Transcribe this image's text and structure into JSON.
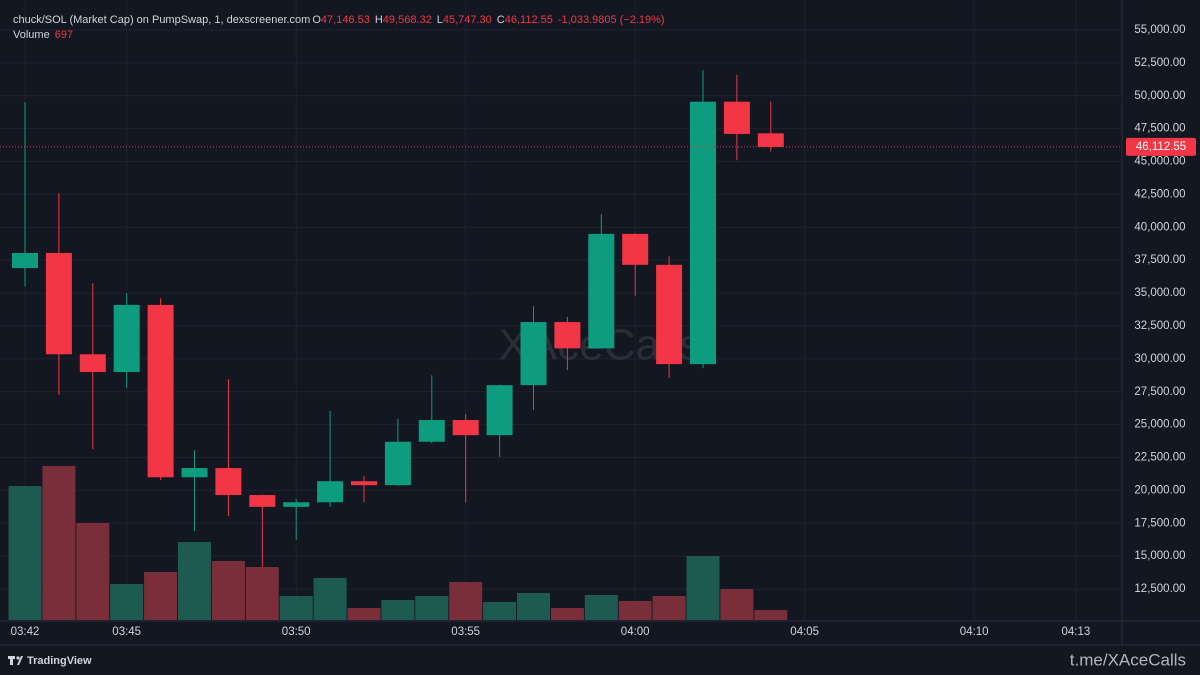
{
  "chart_data": {
    "type": "candlestick",
    "title": "chuck/SOL (Market Cap) on PumpSwap, 1, dexscreener.com",
    "legend": [
      {
        "key": "O",
        "value": "47,146.53"
      },
      {
        "key": "H",
        "value": "49,568.32"
      },
      {
        "key": "L",
        "value": "45,747.30"
      },
      {
        "key": "C",
        "value": "46,112.55"
      }
    ],
    "change": "-1,033.9805 (−2.19%)",
    "volume_title": "Volume",
    "watermark": "XAceCalls",
    "brand": "TradingView",
    "footer": "t.me/XAceCalls",
    "categories": [
      "03:42",
      null,
      null,
      "03:45",
      null,
      null,
      null,
      null,
      "03:50",
      null,
      null,
      null,
      null,
      "03:55",
      null,
      null,
      null,
      null,
      "04:00",
      null,
      null,
      null,
      null,
      "04:05",
      null,
      null,
      null,
      null,
      "04:10",
      null,
      null,
      "04:13"
    ],
    "open": [
      36900,
      38050,
      30350,
      29000,
      34100,
      21000,
      21700,
      19650,
      18750,
      19100,
      20700,
      20400,
      23700,
      25350,
      24200,
      28000,
      32800,
      30800,
      39500,
      37150,
      29600,
      49550,
      47146.53,
      null,
      null,
      null,
      null,
      null,
      null,
      null,
      null,
      null
    ],
    "high": [
      49500,
      42600,
      35750,
      35000,
      34600,
      23050,
      28450,
      19700,
      19350,
      26050,
      21100,
      25450,
      28750,
      25800,
      28050,
      34000,
      33200,
      41000,
      39550,
      37800,
      51950,
      51600,
      49568.32,
      null,
      null,
      null,
      null,
      null,
      null,
      null,
      null,
      null
    ],
    "low": [
      35500,
      27250,
      23150,
      27800,
      20800,
      16900,
      18050,
      14200,
      16250,
      18750,
      19100,
      20350,
      23600,
      19100,
      22550,
      26100,
      29150,
      30800,
      34800,
      28550,
      29300,
      45100,
      45747.3,
      null,
      null,
      null,
      null,
      null,
      null,
      null,
      null,
      null
    ],
    "close": [
      38050,
      30350,
      29000,
      34100,
      21000,
      21700,
      19650,
      18750,
      19100,
      20700,
      20400,
      23700,
      25350,
      24200,
      28000,
      32800,
      30800,
      39500,
      37150,
      29600,
      49550,
      47100,
      46112.55,
      null,
      null,
      null,
      null,
      null,
      null,
      null,
      null,
      null
    ],
    "volume": [
      9380,
      10780,
      6790,
      2520,
      3360,
      5460,
      4130,
      3710,
      1680,
      2940,
      840,
      1400,
      1680,
      2660,
      1260,
      1890,
      840,
      1750,
      1330,
      1680,
      4480,
      2170,
      697,
      null,
      null,
      null,
      null,
      null,
      null,
      null,
      null,
      null
    ],
    "volume_lim": [
      0,
      11200
    ],
    "up_color": "#0e9c7f",
    "down_color": "#f23645",
    "up_volume_color": "#1d5b52",
    "down_volume_color": "#7a2e3a",
    "last_price": {
      "value": 46112.55,
      "label": "46,112.55"
    },
    "ylim": [
      10150,
      57280
    ],
    "yticks": [
      {
        "value": 12500,
        "label": "12,500.00"
      },
      {
        "value": 15000,
        "label": "15,000.00"
      },
      {
        "value": 17500,
        "label": "17,500.00"
      },
      {
        "value": 20000,
        "label": "20,000.00"
      },
      {
        "value": 22500,
        "label": "22,500.00"
      },
      {
        "value": 25000,
        "label": "25,000.00"
      },
      {
        "value": 27500,
        "label": "27,500.00"
      },
      {
        "value": 30000,
        "label": "30,000.00"
      },
      {
        "value": 32500,
        "label": "32,500.00"
      },
      {
        "value": 35000,
        "label": "35,000.00"
      },
      {
        "value": 37500,
        "label": "37,500.00"
      },
      {
        "value": 40000,
        "label": "40,000.00"
      },
      {
        "value": 42500,
        "label": "42,500.00"
      },
      {
        "value": 45000,
        "label": "45,000.00"
      },
      {
        "value": 47500,
        "label": "47,500.00"
      },
      {
        "value": 50000,
        "label": "50,000.00"
      },
      {
        "value": 52500,
        "label": "52,500.00"
      },
      {
        "value": 55000,
        "label": "55,000.00"
      }
    ],
    "grid": true
  }
}
